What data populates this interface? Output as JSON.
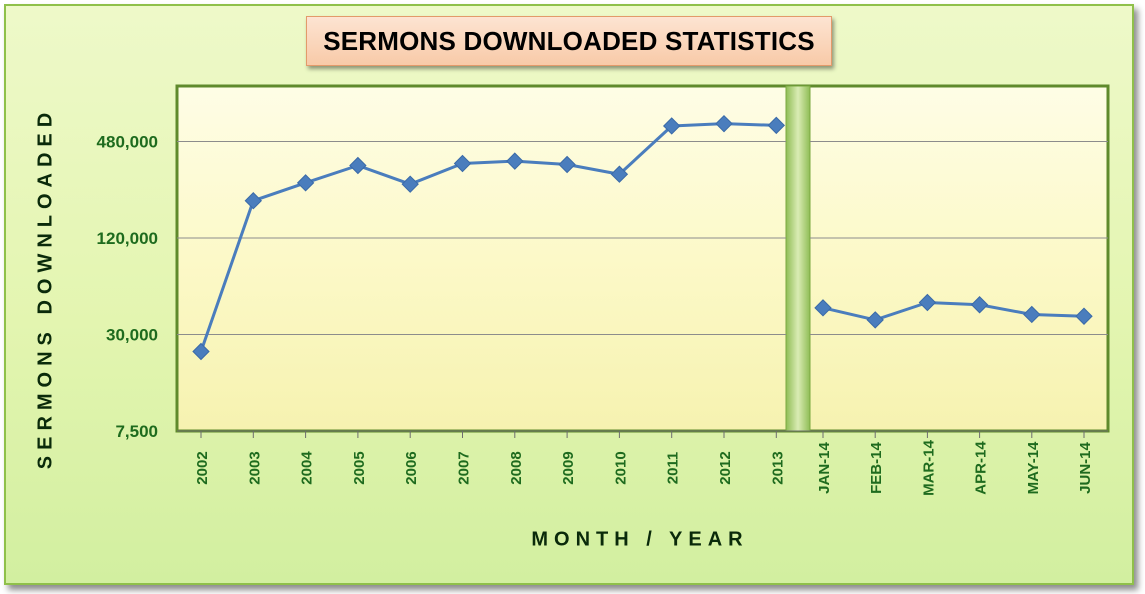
{
  "chart_data": {
    "type": "line",
    "title": "SERMONS DOWNLOADED STATISTICS",
    "xlabel": "MONTH / YEAR",
    "ylabel": "SERMONS DOWNLOADED",
    "yscale": "log",
    "ylim": [
      7500,
      900000
    ],
    "yticks": [
      7500,
      30000,
      120000,
      480000
    ],
    "ytick_labels": [
      "7,500",
      "30,000",
      "120,000",
      "480,000"
    ],
    "grid": true,
    "legend": "none",
    "panels": [
      {
        "name": "years",
        "categories": [
          "2002",
          "2003",
          "2004",
          "2005",
          "2006",
          "2007",
          "2008",
          "2009",
          "2010",
          "2011",
          "2012",
          "2013"
        ],
        "values": [
          23500,
          205000,
          265000,
          340000,
          260000,
          350000,
          362000,
          345000,
          300000,
          600000,
          620000,
          605000
        ]
      },
      {
        "name": "months",
        "categories": [
          "JAN-14",
          "FEB-14",
          "MAR-14",
          "APR-14",
          "MAY-14",
          "JUN-14"
        ],
        "values": [
          44000,
          37000,
          47500,
          46000,
          40000,
          39000
        ]
      }
    ],
    "colors": {
      "line": "#4a7dbd",
      "marker": "#4a7dbd",
      "tick_text": "#1e6b1e",
      "axis_title": "#0a2a0a",
      "plot_fill": "#fdfbd0",
      "plot_border": "#5f8a2c",
      "gap_band": "#a6cd6a"
    }
  }
}
